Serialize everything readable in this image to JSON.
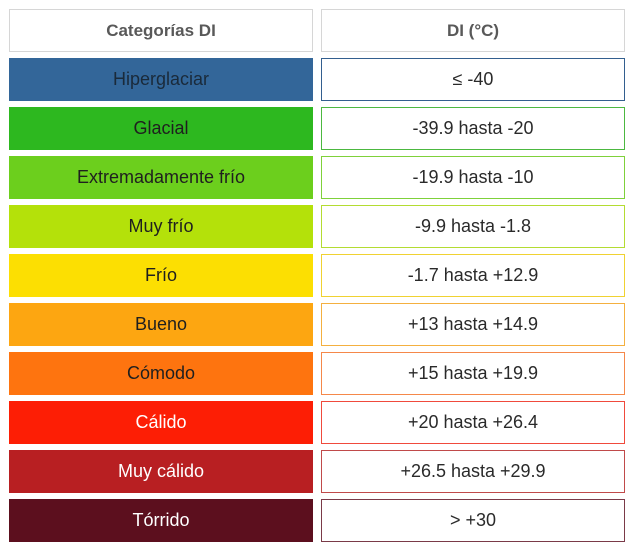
{
  "header": {
    "category_label": "Categorías DI",
    "value_label": "DI (°C)"
  },
  "rows": [
    {
      "category": "Hiperglaciar",
      "range": "≤ -40",
      "fill": "#336699",
      "text": "#1a2a3a",
      "border": "#335f8f"
    },
    {
      "category": "Glacial",
      "range": "-39.9 hasta -20",
      "fill": "#2db81f",
      "text": "#1f1f1f",
      "border": "#4cb840"
    },
    {
      "category": "Extremadamente frío",
      "range": "-19.9 hasta -10",
      "fill": "#6ccf1d",
      "text": "#1f1f1f",
      "border": "#7fd13a"
    },
    {
      "category": "Muy frío",
      "range": "-9.9 hasta -1.8",
      "fill": "#b4e10a",
      "text": "#1f1f1f",
      "border": "#b4dc32"
    },
    {
      "category": "Frío",
      "range": "-1.7 hasta +12.9",
      "fill": "#fcdf02",
      "text": "#1f1f1f",
      "border": "#f0d232"
    },
    {
      "category": "Bueno",
      "range": "+13 hasta +14.9",
      "fill": "#fda611",
      "text": "#1f1f1f",
      "border": "#f4b040"
    },
    {
      "category": "Cómodo",
      "range": "+15 hasta +19.9",
      "fill": "#fe740f",
      "text": "#1f1f1f",
      "border": "#f5884a"
    },
    {
      "category": "Cálido",
      "range": "+20 hasta +26.4",
      "fill": "#fd1e05",
      "text": "#ffffff",
      "border": "#f04a3c"
    },
    {
      "category": "Muy cálido",
      "range": "+26.5 hasta +29.9",
      "fill": "#b81f22",
      "text": "#ffffff",
      "border": "#c04a4a"
    },
    {
      "category": "Tórrido",
      "range": "> +30",
      "fill": "#5c0f1e",
      "text": "#ffffff",
      "border": "#7a3a48"
    }
  ]
}
